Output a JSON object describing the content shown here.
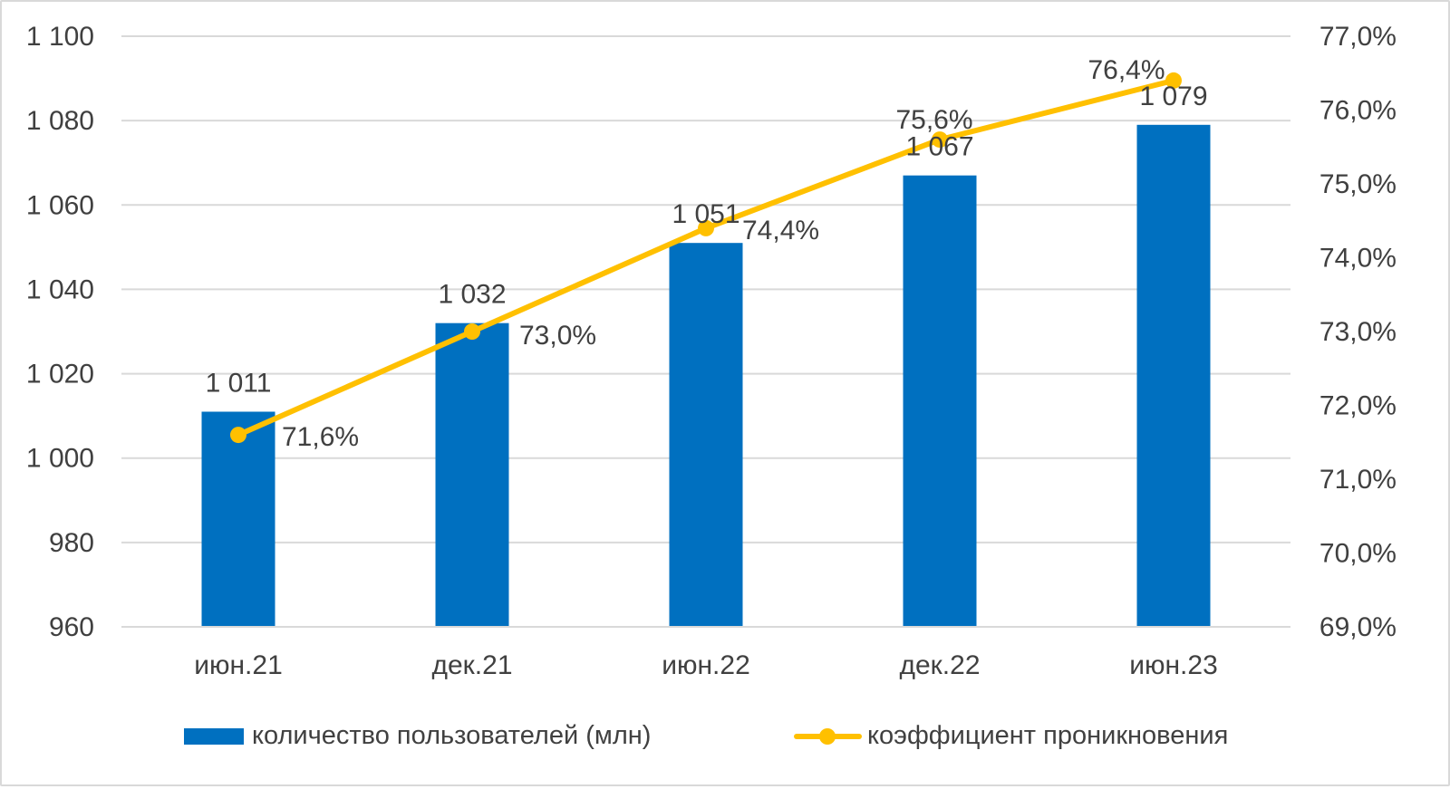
{
  "chart_data": {
    "type": "bar",
    "categories": [
      "июн.21",
      "дек.21",
      "июн.22",
      "дек.22",
      "июн.23"
    ],
    "series": [
      {
        "name": "количество пользователей (млн)",
        "type": "bar",
        "axis": "left",
        "values": [
          1011,
          1032,
          1051,
          1067,
          1079
        ],
        "labels": [
          "1 011",
          "1 032",
          "1 051",
          "1 067",
          "1 079"
        ],
        "color": "#0070C0"
      },
      {
        "name": "коэффициент проникновения",
        "type": "line",
        "axis": "right",
        "values": [
          71.6,
          73.0,
          74.4,
          75.6,
          76.4
        ],
        "labels": [
          "71,6%",
          "73,0%",
          "74,4%",
          "75,6%",
          "76,4%"
        ],
        "color": "#FFC000"
      }
    ],
    "y_left": {
      "ylim": [
        960,
        1100
      ],
      "ticks": [
        960,
        980,
        1000,
        1020,
        1040,
        1060,
        1080,
        1100
      ],
      "tick_labels": [
        "960",
        "980",
        "1 000",
        "1 020",
        "1 040",
        "1 060",
        "1 080",
        "1 100"
      ]
    },
    "y_right": {
      "ylim": [
        69.0,
        77.0
      ],
      "ticks": [
        69,
        70,
        71,
        72,
        73,
        74,
        75,
        76,
        77
      ],
      "tick_labels": [
        "69,0%",
        "70,0%",
        "71,0%",
        "72,0%",
        "73,0%",
        "74,0%",
        "75,0%",
        "76,0%",
        "77,0%"
      ]
    },
    "grid": true,
    "legend": "bottom",
    "title": "",
    "xlabel": "",
    "ylabel": ""
  }
}
